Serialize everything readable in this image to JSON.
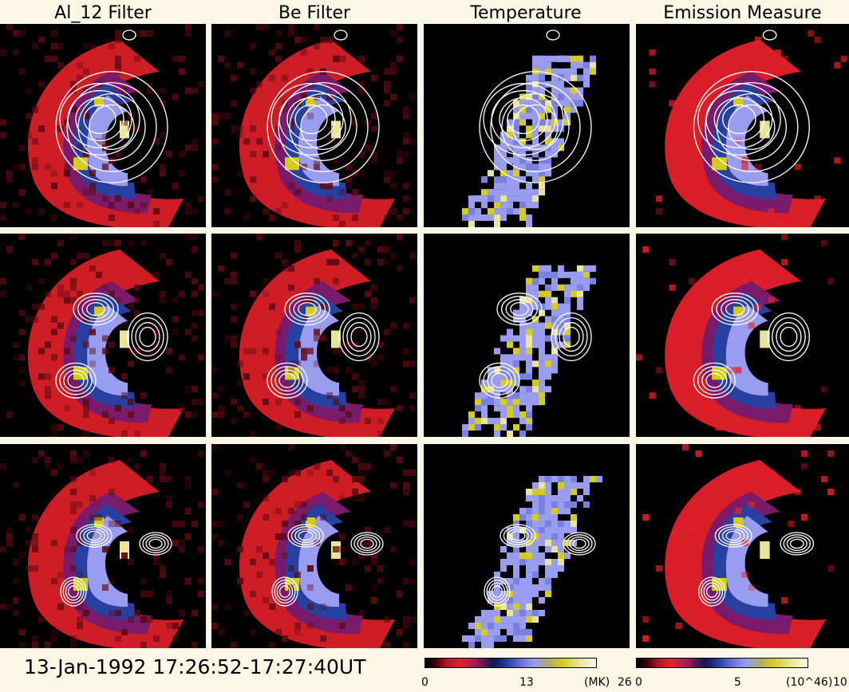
{
  "columns": [
    {
      "title": "Al_12 Filter",
      "kind": "filter"
    },
    {
      "title": "Be Filter",
      "kind": "filter"
    },
    {
      "title": "Temperature",
      "kind": "temperature"
    },
    {
      "title": "Emission Measure",
      "kind": "emission"
    }
  ],
  "rows": 3,
  "footer": {
    "datetime": "13-Jan-1992  17:26:52-17:27:40UT"
  },
  "temp_colorbar": {
    "min": "0",
    "mid": "13",
    "unit": "(MK)",
    "max": "26"
  },
  "em_colorbar": {
    "min": "0",
    "mid": "5",
    "unit": "(10^46)",
    "max": "10"
  },
  "colors": {
    "background": "#fbf7e6",
    "panel": "#000000",
    "contour": "#ffffff",
    "red": "#e6202a",
    "blue": "#2840a0",
    "lavender": "#9a9cf0",
    "yellow": "#d4cc20"
  }
}
